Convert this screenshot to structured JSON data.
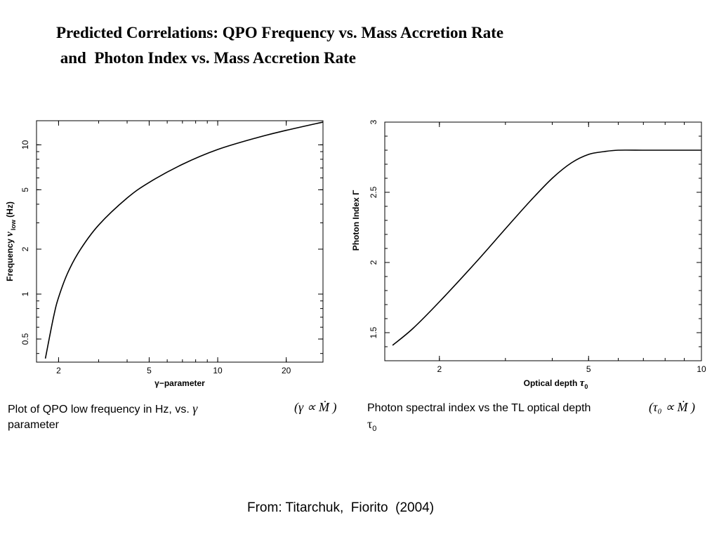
{
  "title": {
    "line1": "Predicted Correlations: QPO Frequency vs. Mass Accretion Rate",
    "line2": " and  Photon Index vs. Mass Accretion Rate"
  },
  "captions": {
    "left_text": "Plot of QPO low frequency in Hz, vs. ",
    "left_symbol": "γ",
    "left_text2": "parameter",
    "left_relation": "(γ ∝ Ṁ )",
    "right_text": "Photon spectral index  vs the TL optical depth",
    "right_relation": "(τ₀ ∝ Ṁ )",
    "right_symbol": "τ",
    "right_subscript": "0"
  },
  "source": "From: Titarchuk,  Fiorito  (2004)",
  "chart_data": [
    {
      "type": "line",
      "xscale": "log",
      "yscale": "log",
      "xlabel": "γ−parameter",
      "ylabel": "Frequency ν low (Hz)",
      "ylabel_parts": [
        "Frequency ",
        "ν",
        "low",
        " (Hz)"
      ],
      "xlim": [
        1.6,
        29
      ],
      "ylim": [
        0.35,
        14.5
      ],
      "xticks": [
        2,
        5,
        10,
        20
      ],
      "xtick_labels": [
        "2",
        "5",
        "10",
        "20"
      ],
      "yticks": [
        0.5,
        1,
        2,
        5,
        10
      ],
      "ytick_labels": [
        "0.5",
        "1",
        "2",
        "5",
        "10"
      ],
      "series": [
        {
          "x": [
            1.75,
            1.9,
            2.0,
            2.2,
            2.5,
            3.0,
            4.0,
            5.0,
            7.0,
            10.0,
            15.0,
            20.0,
            29.0
          ],
          "y": [
            0.37,
            0.7,
            0.95,
            1.4,
            2.0,
            2.9,
            4.4,
            5.6,
            7.4,
            9.3,
            11.2,
            12.5,
            14.2
          ]
        }
      ],
      "grid": false
    },
    {
      "type": "line",
      "xscale": "log",
      "yscale": "linear",
      "xlabel": "Optical depth τ0",
      "xlabel_parts": [
        "Optical depth ",
        "τ",
        "0"
      ],
      "ylabel": "Photon Index Γ",
      "xlim": [
        1.43,
        10
      ],
      "ylim": [
        1.3,
        3.0
      ],
      "xticks": [
        2,
        5,
        10
      ],
      "xtick_labels": [
        "2",
        "5",
        "10"
      ],
      "yticks": [
        1.5,
        2,
        2.5,
        3
      ],
      "ytick_labels": [
        "1.5",
        "2",
        "2.5",
        "3"
      ],
      "series": [
        {
          "x": [
            1.5,
            1.7,
            2.0,
            2.5,
            3.0,
            3.5,
            4.0,
            4.5,
            5.0,
            5.5,
            6.0,
            7.0,
            8.0,
            10.0
          ],
          "y": [
            1.41,
            1.53,
            1.72,
            2.0,
            2.24,
            2.44,
            2.6,
            2.71,
            2.77,
            2.79,
            2.8,
            2.8,
            2.8,
            2.8
          ]
        }
      ],
      "grid": false
    }
  ]
}
